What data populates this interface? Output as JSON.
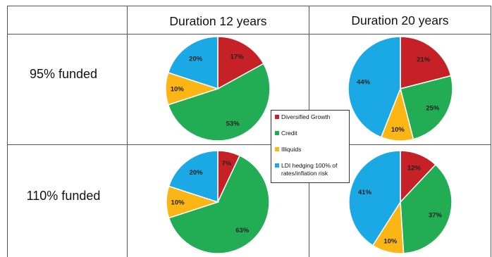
{
  "table": {
    "col_headers": [
      "Duration 12 years",
      "Duration 20 years"
    ],
    "row_labels": [
      "95% funded",
      "110% funded"
    ]
  },
  "legend": [
    {
      "label": "Diversified Growth",
      "color": "#c62127"
    },
    {
      "label": "Credit",
      "color": "#22ad55"
    },
    {
      "label": "Illiquids",
      "color": "#fbb515"
    },
    {
      "label": "LDI hedging 100% of rates/inflation risk",
      "color": "#1aa9e4"
    }
  ],
  "chart_data": [
    {
      "type": "pie",
      "row": "95% funded",
      "column": "Duration 12 years",
      "slices": [
        {
          "category": "Diversified Growth",
          "value": 17,
          "label": "17%"
        },
        {
          "category": "Credit",
          "value": 53,
          "label": "53%"
        },
        {
          "category": "Illiquids",
          "value": 10,
          "label": "10%"
        },
        {
          "category": "LDI hedging 100% of rates/inflation risk",
          "value": 20,
          "label": "20%"
        }
      ]
    },
    {
      "type": "pie",
      "row": "95% funded",
      "column": "Duration 20 years",
      "slices": [
        {
          "category": "Diversified Growth",
          "value": 21,
          "label": "21%"
        },
        {
          "category": "Credit",
          "value": 25,
          "label": "25%"
        },
        {
          "category": "Illiquids",
          "value": 10,
          "label": "10%"
        },
        {
          "category": "LDI hedging 100% of rates/inflation risk",
          "value": 44,
          "label": "44%"
        }
      ]
    },
    {
      "type": "pie",
      "row": "110% funded",
      "column": "Duration 12 years",
      "slices": [
        {
          "category": "Diversified Growth",
          "value": 7,
          "label": "7%"
        },
        {
          "category": "Credit",
          "value": 63,
          "label": "63%"
        },
        {
          "category": "Illiquids",
          "value": 10,
          "label": "10%"
        },
        {
          "category": "LDI hedging 100% of rates/inflation risk",
          "value": 20,
          "label": "20%"
        }
      ]
    },
    {
      "type": "pie",
      "row": "110% funded",
      "column": "Duration 20 years",
      "slices": [
        {
          "category": "Diversified Growth",
          "value": 12,
          "label": "12%"
        },
        {
          "category": "Credit",
          "value": 37,
          "label": "37%"
        },
        {
          "category": "Illiquids",
          "value": 10,
          "label": "10%"
        },
        {
          "category": "LDI hedging 100% of rates/inflation risk",
          "value": 41,
          "label": "41%"
        }
      ]
    }
  ]
}
